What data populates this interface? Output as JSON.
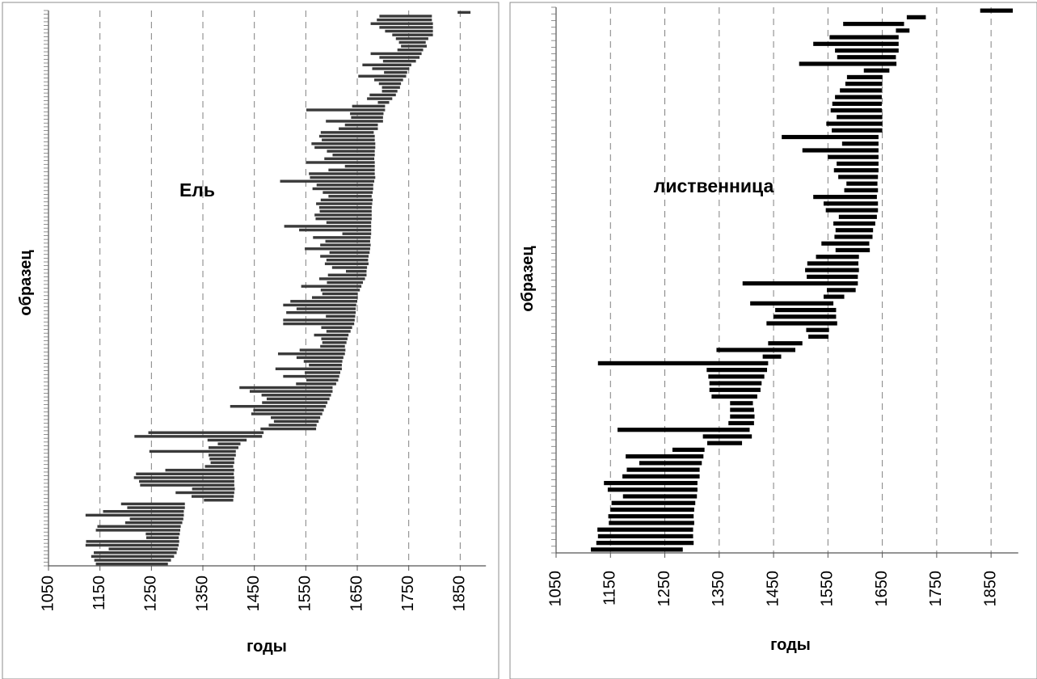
{
  "chart_data": [
    {
      "type": "bar",
      "orientation": "horizontal-range",
      "title": "Ель",
      "xlabel": "годы",
      "ylabel": "образец",
      "xlim": [
        1050,
        1900
      ],
      "xticks": [
        "1050",
        "1150",
        "1250",
        "1350",
        "1450",
        "1550",
        "1650",
        "1750",
        "1850"
      ],
      "grid": "vertical dashed",
      "bar_color": "#3a3a3a",
      "series": [
        [
          1845,
          1870
        ],
        [
          1693,
          1795
        ],
        [
          1688,
          1795
        ],
        [
          1676,
          1797
        ],
        [
          1693,
          1797
        ],
        [
          1704,
          1797
        ],
        [
          1718,
          1797
        ],
        [
          1725,
          1788
        ],
        [
          1731,
          1783
        ],
        [
          1735,
          1785
        ],
        [
          1728,
          1778
        ],
        [
          1676,
          1775
        ],
        [
          1693,
          1771
        ],
        [
          1700,
          1764
        ],
        [
          1660,
          1755
        ],
        [
          1679,
          1751
        ],
        [
          1702,
          1747
        ],
        [
          1652,
          1745
        ],
        [
          1683,
          1739
        ],
        [
          1692,
          1735
        ],
        [
          1698,
          1733
        ],
        [
          1698,
          1728
        ],
        [
          1674,
          1725
        ],
        [
          1669,
          1718
        ],
        [
          1690,
          1712
        ],
        [
          1640,
          1704
        ],
        [
          1551,
          1704
        ],
        [
          1636,
          1701
        ],
        [
          1638,
          1700
        ],
        [
          1589,
          1700
        ],
        [
          1626,
          1690
        ],
        [
          1614,
          1690
        ],
        [
          1579,
          1682
        ],
        [
          1576,
          1684
        ],
        [
          1581,
          1684
        ],
        [
          1561,
          1685
        ],
        [
          1567,
          1685
        ],
        [
          1591,
          1684
        ],
        [
          1602,
          1684
        ],
        [
          1586,
          1683
        ],
        [
          1551,
          1684
        ],
        [
          1626,
          1684
        ],
        [
          1594,
          1684
        ],
        [
          1556,
          1684
        ],
        [
          1558,
          1685
        ],
        [
          1500,
          1683
        ],
        [
          1571,
          1681
        ],
        [
          1563,
          1681
        ],
        [
          1583,
          1680
        ],
        [
          1594,
          1678
        ],
        [
          1579,
          1680
        ],
        [
          1570,
          1679
        ],
        [
          1576,
          1678
        ],
        [
          1577,
          1678
        ],
        [
          1567,
          1678
        ],
        [
          1569,
          1678
        ],
        [
          1590,
          1677
        ],
        [
          1508,
          1677
        ],
        [
          1537,
          1677
        ],
        [
          1621,
          1677
        ],
        [
          1564,
          1676
        ],
        [
          1588,
          1675
        ],
        [
          1578,
          1676
        ],
        [
          1548,
          1675
        ],
        [
          1596,
          1674
        ],
        [
          1578,
          1672
        ],
        [
          1590,
          1671
        ],
        [
          1587,
          1672
        ],
        [
          1601,
          1669
        ],
        [
          1628,
          1668
        ],
        [
          1593,
          1668
        ],
        [
          1576,
          1665
        ],
        [
          1591,
          1661
        ],
        [
          1541,
          1658
        ],
        [
          1579,
          1655
        ],
        [
          1582,
          1651
        ],
        [
          1562,
          1651
        ],
        [
          1520,
          1650
        ],
        [
          1506,
          1648
        ],
        [
          1532,
          1647
        ],
        [
          1512,
          1647
        ],
        [
          1589,
          1646
        ],
        [
          1506,
          1645
        ],
        [
          1506,
          1644
        ],
        [
          1580,
          1640
        ],
        [
          1590,
          1637
        ],
        [
          1566,
          1633
        ],
        [
          1580,
          1631
        ],
        [
          1582,
          1629
        ],
        [
          1578,
          1626
        ],
        [
          1538,
          1627
        ],
        [
          1496,
          1626
        ],
        [
          1532,
          1623
        ],
        [
          1546,
          1621
        ],
        [
          1556,
          1620
        ],
        [
          1491,
          1620
        ],
        [
          1548,
          1617
        ],
        [
          1506,
          1615
        ],
        [
          1551,
          1613
        ],
        [
          1531,
          1609
        ],
        [
          1421,
          1602
        ],
        [
          1441,
          1602
        ],
        [
          1464,
          1599
        ],
        [
          1474,
          1596
        ],
        [
          1465,
          1592
        ],
        [
          1403,
          1589
        ],
        [
          1448,
          1585
        ],
        [
          1444,
          1582
        ],
        [
          1482,
          1578
        ],
        [
          1488,
          1575
        ],
        [
          1478,
          1571
        ],
        [
          1462,
          1570
        ],
        [
          1244,
          1468
        ],
        [
          1217,
          1465
        ],
        [
          1359,
          1435
        ],
        [
          1379,
          1423
        ],
        [
          1361,
          1419
        ],
        [
          1246,
          1414
        ],
        [
          1361,
          1414
        ],
        [
          1363,
          1411
        ],
        [
          1365,
          1411
        ],
        [
          1354,
          1409
        ],
        [
          1277,
          1411
        ],
        [
          1220,
          1410
        ],
        [
          1216,
          1411
        ],
        [
          1226,
          1411
        ],
        [
          1228,
          1411
        ],
        [
          1329,
          1412
        ],
        [
          1297,
          1411
        ],
        [
          1328,
          1410
        ],
        [
          1352,
          1409
        ],
        [
          1191,
          1315
        ],
        [
          1203,
          1315
        ],
        [
          1156,
          1313
        ],
        [
          1122,
          1313
        ],
        [
          1208,
          1312
        ],
        [
          1199,
          1310
        ],
        [
          1145,
          1307
        ],
        [
          1142,
          1306
        ],
        [
          1239,
          1305
        ],
        [
          1240,
          1303
        ],
        [
          1123,
          1304
        ],
        [
          1122,
          1303
        ],
        [
          1167,
          1301
        ],
        [
          1138,
          1299
        ],
        [
          1133,
          1294
        ],
        [
          1139,
          1288
        ],
        [
          1142,
          1282
        ]
      ]
    },
    {
      "type": "bar",
      "orientation": "horizontal-range",
      "title": "лиственница",
      "xlabel": "годы",
      "ylabel": "образец",
      "xlim": [
        1050,
        1900
      ],
      "xticks": [
        "1050",
        "1150",
        "1250",
        "1350",
        "1450",
        "1550",
        "1650",
        "1750",
        "1850"
      ],
      "grid": "vertical dashed",
      "bar_color": "#000000",
      "series": [
        [
          1830,
          1890
        ],
        [
          1695,
          1730
        ],
        [
          1578,
          1690
        ],
        [
          1675,
          1700
        ],
        [
          1553,
          1680
        ],
        [
          1523,
          1680
        ],
        [
          1563,
          1680
        ],
        [
          1567,
          1675
        ],
        [
          1497,
          1676
        ],
        [
          1616,
          1663
        ],
        [
          1585,
          1650
        ],
        [
          1582,
          1650
        ],
        [
          1572,
          1649
        ],
        [
          1563,
          1649
        ],
        [
          1558,
          1649
        ],
        [
          1555,
          1649
        ],
        [
          1566,
          1650
        ],
        [
          1547,
          1650
        ],
        [
          1557,
          1650
        ],
        [
          1465,
          1643
        ],
        [
          1576,
          1643
        ],
        [
          1503,
          1643
        ],
        [
          1550,
          1643
        ],
        [
          1566,
          1643
        ],
        [
          1561,
          1643
        ],
        [
          1569,
          1642
        ],
        [
          1584,
          1641
        ],
        [
          1580,
          1642
        ],
        [
          1523,
          1640
        ],
        [
          1542,
          1642
        ],
        [
          1546,
          1642
        ],
        [
          1570,
          1640
        ],
        [
          1560,
          1637
        ],
        [
          1564,
          1633
        ],
        [
          1562,
          1632
        ],
        [
          1538,
          1626
        ],
        [
          1564,
          1627
        ],
        [
          1528,
          1607
        ],
        [
          1512,
          1606
        ],
        [
          1508,
          1607
        ],
        [
          1511,
          1605
        ],
        [
          1393,
          1605
        ],
        [
          1548,
          1601
        ],
        [
          1542,
          1580
        ],
        [
          1407,
          1560
        ],
        [
          1453,
          1565
        ],
        [
          1450,
          1565
        ],
        [
          1437,
          1567
        ],
        [
          1510,
          1552
        ],
        [
          1514,
          1551
        ],
        [
          1440,
          1503
        ],
        [
          1345,
          1490
        ],
        [
          1430,
          1464
        ],
        [
          1127,
          1440
        ],
        [
          1327,
          1438
        ],
        [
          1330,
          1433
        ],
        [
          1332,
          1428
        ],
        [
          1332,
          1426
        ],
        [
          1336,
          1420
        ],
        [
          1370,
          1412
        ],
        [
          1370,
          1414
        ],
        [
          1370,
          1415
        ],
        [
          1367,
          1414
        ],
        [
          1163,
          1406
        ],
        [
          1320,
          1410
        ],
        [
          1328,
          1392
        ],
        [
          1264,
          1323
        ],
        [
          1178,
          1321
        ],
        [
          1203,
          1318
        ],
        [
          1180,
          1314
        ],
        [
          1172,
          1314
        ],
        [
          1138,
          1310
        ],
        [
          1145,
          1310
        ],
        [
          1173,
          1309
        ],
        [
          1152,
          1306
        ],
        [
          1150,
          1304
        ],
        [
          1146,
          1303
        ],
        [
          1147,
          1304
        ],
        [
          1126,
          1302
        ],
        [
          1127,
          1302
        ],
        [
          1124,
          1303
        ],
        [
          1114,
          1283
        ]
      ]
    }
  ],
  "panels": [
    {
      "title": "Ель",
      "xlabel": "годы",
      "ylabel": "образец"
    },
    {
      "title": "лиственница",
      "xlabel": "годы",
      "ylabel": "образец"
    }
  ],
  "xticks": [
    "1050",
    "1150",
    "1250",
    "1350",
    "1450",
    "1550",
    "1650",
    "1750",
    "1850"
  ]
}
